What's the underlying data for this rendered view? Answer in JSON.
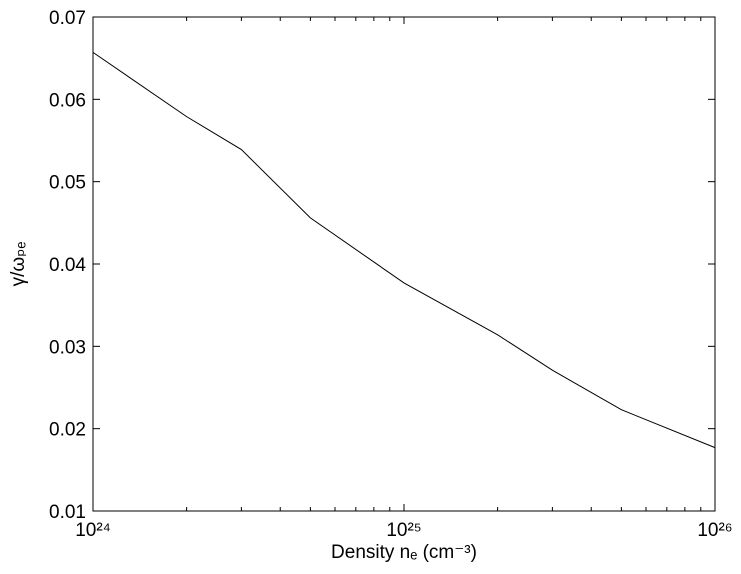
{
  "chart_data": {
    "type": "line",
    "xscale": "log",
    "xlabel": "Density nₑ (cm⁻³)",
    "ylabel": "γ/ωₚₑ",
    "x": [
      1e+24,
      2e+24,
      3e+24,
      5e+24,
      1e+25,
      2e+25,
      3e+25,
      5e+25,
      1e+26
    ],
    "series": [
      {
        "color": "#000000",
        "values": [
          0.0657,
          0.0579,
          0.0539,
          0.0456,
          0.0377,
          0.0314,
          0.0271,
          0.0223,
          0.0177
        ]
      }
    ],
    "xlim": [
      1e+24,
      1e+26
    ],
    "xticks": [
      {
        "value": 1e+24,
        "label": "10²⁴"
      },
      {
        "value": 1e+25,
        "label": "10²⁵"
      },
      {
        "value": 1e+26,
        "label": "10²⁶"
      }
    ],
    "ylim": [
      0.01,
      0.07
    ],
    "yticks": [
      0.01,
      0.02,
      0.03,
      0.04,
      0.05,
      0.06,
      0.07
    ],
    "grid": false
  }
}
